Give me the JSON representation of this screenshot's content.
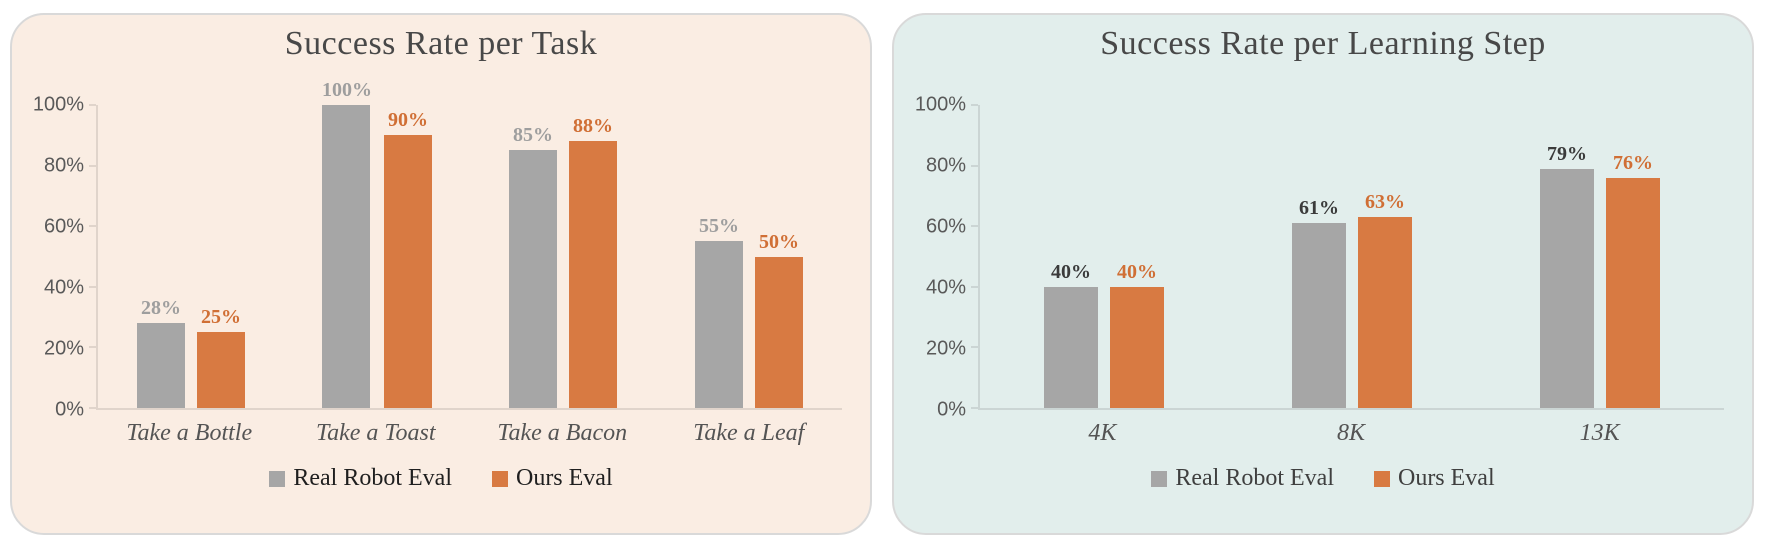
{
  "chart_data": [
    {
      "type": "bar",
      "title": "Success Rate per Task",
      "panel_background": "#FAEDE3",
      "categories": [
        "Take a Bottle",
        "Take a Toast",
        "Take a Bacon",
        "Take a Leaf"
      ],
      "series": [
        {
          "name": "Real Robot Eval",
          "color": "#A6A6A6",
          "label_color": "#9E9E9E",
          "values": [
            28,
            100,
            85,
            55
          ],
          "labels": [
            "28%",
            "100%",
            "85%",
            "55%"
          ]
        },
        {
          "name": "Ours Eval",
          "color": "#D87A42",
          "label_color": "#D06F35",
          "values": [
            25,
            90,
            88,
            50
          ],
          "labels": [
            "25%",
            "90%",
            "88%",
            "50%"
          ]
        }
      ],
      "xlabel": "",
      "ylabel": "",
      "ylim": [
        0,
        100
      ],
      "yticks": [
        "100%",
        "80%",
        "60%",
        "40%",
        "20%",
        "0%"
      ],
      "grid": false,
      "legend_position": "bottom",
      "legend_text_color": "#1F1F1F"
    },
    {
      "type": "bar",
      "title": "Success Rate per Learning Step",
      "panel_background": "#E2EEEC",
      "categories": [
        "4K",
        "8K",
        "13K"
      ],
      "series": [
        {
          "name": "Real Robot Eval",
          "color": "#A6A6A6",
          "label_color": "#3B3B3B",
          "values": [
            40,
            61,
            79
          ],
          "labels": [
            "40%",
            "61%",
            "79%"
          ]
        },
        {
          "name": "Ours Eval",
          "color": "#D87A42",
          "label_color": "#D06F35",
          "values": [
            40,
            63,
            76
          ],
          "labels": [
            "40%",
            "63%",
            "76%"
          ]
        }
      ],
      "xlabel": "",
      "ylabel": "",
      "ylim": [
        0,
        100
      ],
      "yticks": [
        "100%",
        "80%",
        "60%",
        "40%",
        "20%",
        "0%"
      ],
      "grid": false,
      "legend_position": "bottom",
      "legend_text_color": "#3F3F3F"
    }
  ]
}
